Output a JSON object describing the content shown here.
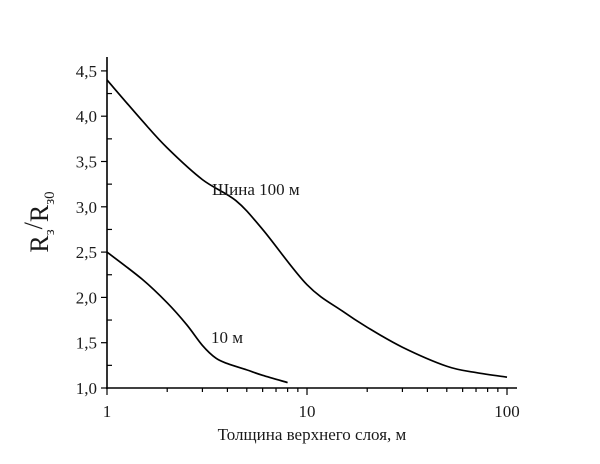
{
  "chart_data": {
    "type": "line",
    "title": "",
    "xlabel": "Толщина верхнего слоя, м",
    "ylabel": "R_з/R_з0",
    "ylabel_parts": {
      "main1": "R",
      "sub1": "з",
      "slash": "/",
      "main2": "R",
      "sub2": "з0"
    },
    "xscale": "log",
    "xlim": [
      1,
      100
    ],
    "ylim": [
      1.0,
      4.5
    ],
    "x_ticks": [
      "1",
      "10",
      "100"
    ],
    "y_ticks": [
      "1,0",
      "1,5",
      "2,0",
      "2,5",
      "3,0",
      "3,5",
      "4,0",
      "4,5"
    ],
    "grid": false,
    "legend": "inline labels",
    "series": [
      {
        "name": "Шина 100 м",
        "label": "Шина 100 м",
        "x": [
          1,
          1.5,
          2,
          3,
          4.4,
          6,
          10,
          15,
          20,
          30,
          50,
          70,
          100
        ],
        "y": [
          4.4,
          3.95,
          3.65,
          3.3,
          3.07,
          2.75,
          2.14,
          1.85,
          1.67,
          1.45,
          1.24,
          1.17,
          1.12
        ]
      },
      {
        "name": "10 м",
        "label": "10 м",
        "x": [
          1,
          1.5,
          2,
          2.5,
          3,
          3.5,
          4,
          5,
          6,
          8
        ],
        "y": [
          2.5,
          2.2,
          1.94,
          1.7,
          1.47,
          1.33,
          1.27,
          1.2,
          1.14,
          1.06
        ]
      }
    ]
  }
}
